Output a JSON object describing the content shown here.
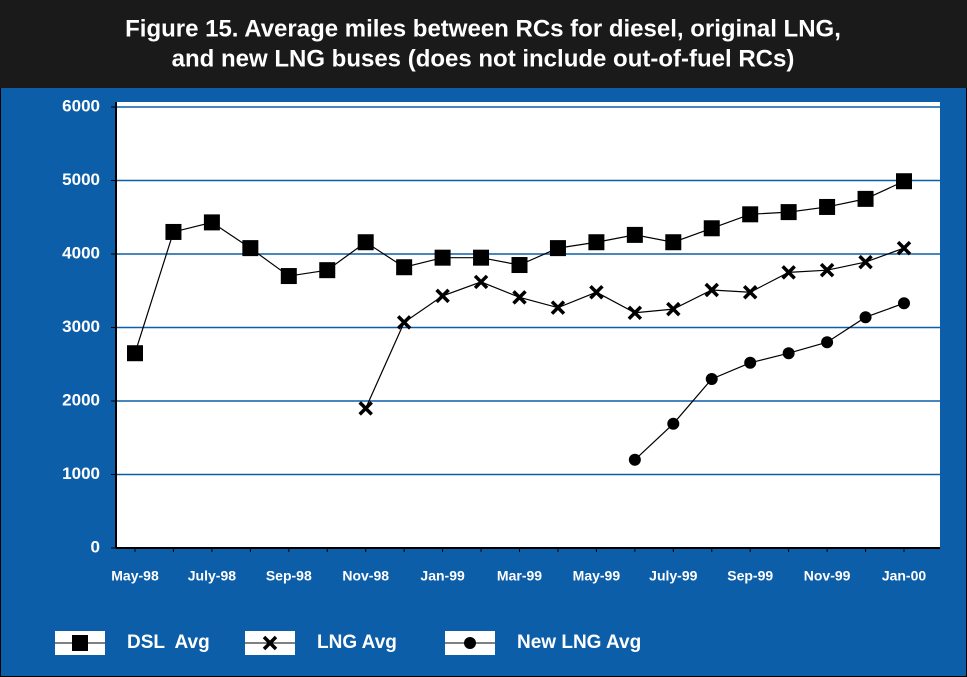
{
  "chart_data": {
    "type": "line",
    "title": [
      "Figure 15. Average miles between RCs for diesel, original LNG,",
      "and new LNG buses (does not include out-of-fuel RCs)"
    ],
    "categories": [
      "May-98",
      null,
      "July-98",
      null,
      "Sep-98",
      null,
      "Nov-98",
      null,
      "Jan-99",
      null,
      "Mar-99",
      null,
      "May-99",
      null,
      "July-99",
      null,
      "Sep-99",
      null,
      "Nov-99",
      null,
      "Jan-00"
    ],
    "series": [
      {
        "name": "DSL  Avg",
        "color": "#000000",
        "marker": "square",
        "values": [
          2650,
          4300,
          4430,
          4080,
          3700,
          3780,
          4160,
          3820,
          3950,
          3950,
          3850,
          4080,
          4160,
          4260,
          4160,
          4350,
          4540,
          4570,
          4640,
          4750,
          4990
        ]
      },
      {
        "name": "LNG Avg",
        "color": "#000000",
        "marker": "x",
        "values": [
          null,
          null,
          null,
          null,
          null,
          null,
          1900,
          3070,
          3430,
          3620,
          3410,
          3270,
          3480,
          3200,
          3250,
          3510,
          3480,
          3750,
          3780,
          3890,
          4080
        ]
      },
      {
        "name": "New LNG Avg",
        "color": "#000000",
        "marker": "circle",
        "values": [
          null,
          null,
          null,
          null,
          null,
          null,
          null,
          null,
          null,
          null,
          null,
          null,
          null,
          1200,
          1690,
          2300,
          2520,
          2650,
          2800,
          3140,
          3330
        ]
      }
    ],
    "ylim": [
      0,
      6000
    ],
    "yticks": [
      0,
      1000,
      2000,
      3000,
      4000,
      5000,
      6000
    ],
    "grid": true
  }
}
